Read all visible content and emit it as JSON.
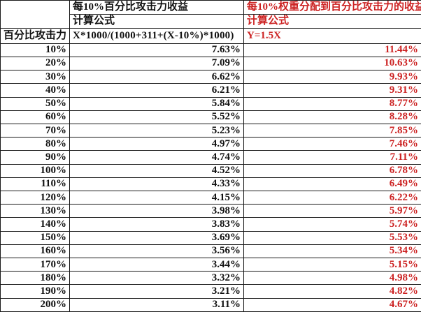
{
  "colors": {
    "red_accent": "#cc2222",
    "text": "#111111",
    "grid_border": "#1a1a1a",
    "background": "#ffffff"
  },
  "header": {
    "col1_title": "百分比攻击力",
    "col2_title": "每10%百分比攻击力收益",
    "col2_formula_label": "计算公式",
    "col2_formula": "X*1000/(1000+311+(X-10%)*1000)",
    "col3_title": "每10%权重分配到百分比攻击力的收益",
    "col3_formula_label": "计算公式",
    "col3_formula": "Y=1.5X"
  },
  "chart_data": {
    "type": "table",
    "columns": [
      "百分比攻击力",
      "每10%百分比攻击力收益",
      "每10%权重分配到百分比攻击力的收益"
    ],
    "formulas": {
      "每10%百分比攻击力收益": "X*1000/(1000+311+(X-10%)*1000)",
      "每10%权重分配到百分比攻击力的收益": "Y=1.5X"
    },
    "rows": [
      [
        "10%",
        "7.63%",
        "11.44%"
      ],
      [
        "20%",
        "7.09%",
        "10.63%"
      ],
      [
        "30%",
        "6.62%",
        "9.93%"
      ],
      [
        "40%",
        "6.21%",
        "9.31%"
      ],
      [
        "50%",
        "5.84%",
        "8.77%"
      ],
      [
        "60%",
        "5.52%",
        "8.28%"
      ],
      [
        "70%",
        "5.23%",
        "7.85%"
      ],
      [
        "80%",
        "4.97%",
        "7.46%"
      ],
      [
        "90%",
        "4.74%",
        "7.11%"
      ],
      [
        "100%",
        "4.52%",
        "6.78%"
      ],
      [
        "110%",
        "4.33%",
        "6.49%"
      ],
      [
        "120%",
        "4.15%",
        "6.22%"
      ],
      [
        "130%",
        "3.98%",
        "5.97%"
      ],
      [
        "140%",
        "3.83%",
        "5.74%"
      ],
      [
        "150%",
        "3.69%",
        "5.53%"
      ],
      [
        "160%",
        "3.56%",
        "5.34%"
      ],
      [
        "170%",
        "3.44%",
        "5.15%"
      ],
      [
        "180%",
        "3.32%",
        "4.98%"
      ],
      [
        "190%",
        "3.21%",
        "4.82%"
      ],
      [
        "200%",
        "3.11%",
        "4.67%"
      ]
    ]
  }
}
